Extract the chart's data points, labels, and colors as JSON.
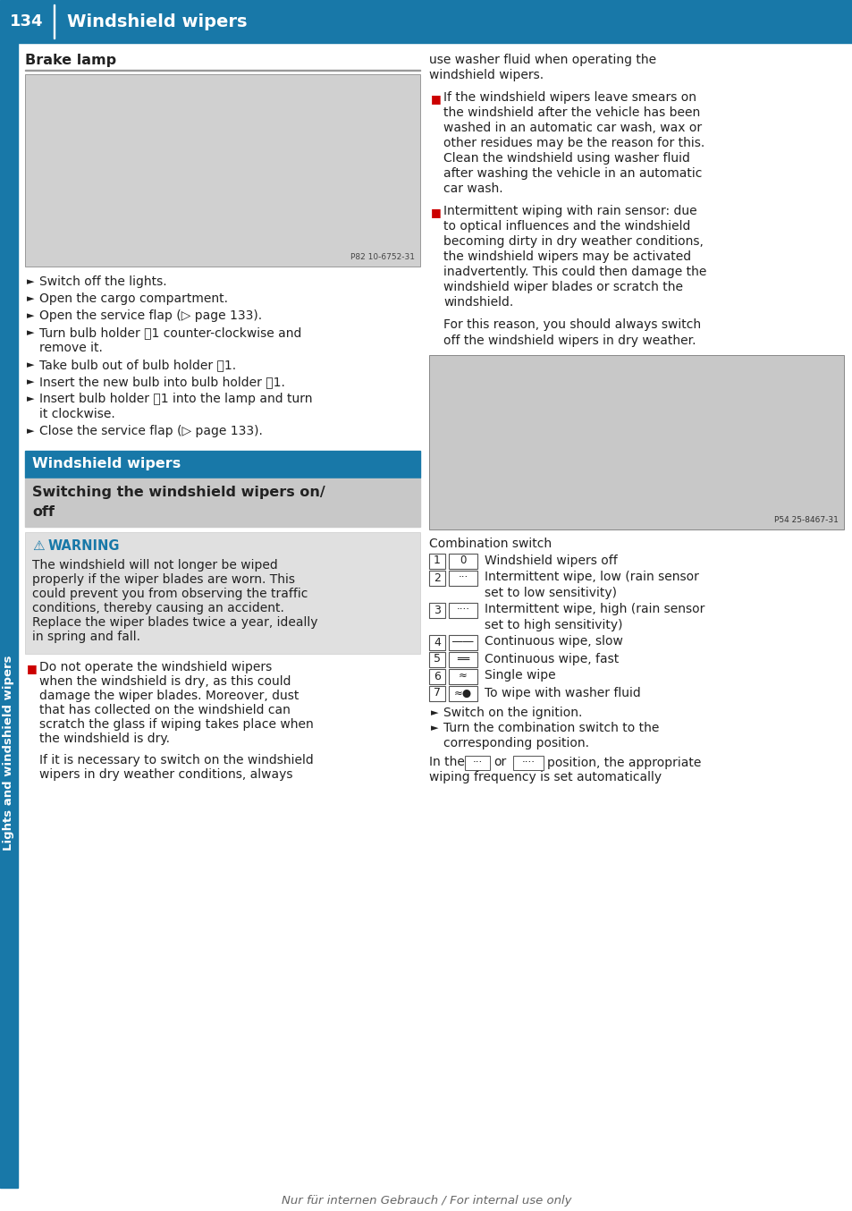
{
  "page_number": "134",
  "header_title": "Windshield wipers",
  "header_bg": "#1878a8",
  "sidebar_text": "Lights and windshield wipers",
  "brake_lamp_title": "Brake lamp",
  "brake_lamp_items": [
    [
      "Switch off the lights.",
      null
    ],
    [
      "Open the cargo compartment.",
      null
    ],
    [
      "Open the service flap (▷ page 133).",
      null
    ],
    [
      "Turn bulb holder ␱1 counter-clockwise and",
      "remove it."
    ],
    [
      "Take bulb out of bulb holder ␱1.",
      null
    ],
    [
      "Insert the new bulb into bulb holder ␱1.",
      null
    ],
    [
      "Insert bulb holder ␱1 into the lamp and turn",
      "it clockwise."
    ],
    [
      "Close the service flap (▷ page 133).",
      null
    ]
  ],
  "windshield_section_title": "Windshield wipers",
  "switching_line1": "Switching the windshield wipers on/",
  "switching_line2": "off",
  "warning_title": "WARNING",
  "warning_lines": [
    "The windshield will not longer be wiped",
    "properly if the wiper blades are worn. This",
    "could prevent you from observing the traffic",
    "conditions, thereby causing an accident.",
    "Replace the wiper blades twice a year, ideally",
    "in spring and fall."
  ],
  "notice1_lines": [
    "Do not operate the windshield wipers",
    "when the windshield is dry, as this could",
    "damage the wiper blades. Moreover, dust",
    "that has collected on the windshield can",
    "scratch the glass if wiping takes place when",
    "the windshield is dry.",
    "",
    "If it is necessary to switch on the windshield",
    "wipers in dry weather conditions, always"
  ],
  "right_intro_lines": [
    "use washer fluid when operating the",
    "windshield wipers."
  ],
  "notice2_lines": [
    "If the windshield wipers leave smears on",
    "the windshield after the vehicle has been",
    "washed in an automatic car wash, wax or",
    "other residues may be the reason for this.",
    "Clean the windshield using washer fluid",
    "after washing the vehicle in an automatic",
    "car wash."
  ],
  "notice3_lines": [
    "Intermittent wiping with rain sensor: due",
    "to optical influences and the windshield",
    "becoming dirty in dry weather conditions,",
    "the windshield wipers may be activated",
    "inadvertently. This could then damage the",
    "windshield wiper blades or scratch the",
    "windshield.",
    "",
    "For this reason, you should always switch",
    "off the windshield wipers in dry weather."
  ],
  "combo_label": "Combination switch",
  "combo_items": [
    {
      "num": "1",
      "icon": "0",
      "desc": [
        "Windshield wipers off"
      ]
    },
    {
      "num": "2",
      "icon": "···",
      "desc": [
        "Intermittent wipe, low (rain sensor",
        "set to low sensitivity)"
      ]
    },
    {
      "num": "3",
      "icon": "····",
      "desc": [
        "Intermittent wipe, high (rain sensor",
        "set to high sensitivity)"
      ]
    },
    {
      "num": "4",
      "icon": "――",
      "desc": [
        "Continuous wipe, slow"
      ]
    },
    {
      "num": "5",
      "icon": "══",
      "desc": [
        "Continuous wipe, fast"
      ]
    },
    {
      "num": "6",
      "icon": "≈",
      "desc": [
        "Single wipe"
      ]
    },
    {
      "num": "7",
      "icon": "≈●",
      "desc": [
        "To wipe with washer fluid"
      ]
    }
  ],
  "final_bullets": [
    [
      "Switch on the ignition.",
      null
    ],
    [
      "Turn the combination switch to the",
      "corresponding position."
    ]
  ],
  "final_line1": "In the",
  "final_icon1": "···",
  "final_or": "or",
  "final_icon2": "····",
  "final_line2": "position, the appropriate",
  "final_line3": "wiping frequency is set automatically",
  "footer_text": "Nur für internen Gebrauch / For internal use only",
  "blue": "#1878a8",
  "dark": "#222222",
  "warn_orange": "#1878a8",
  "red_icon": "#cc0000",
  "warn_bg": "#e0e0e0",
  "switch_bg": "#c8c8c8",
  "img1_caption": "P82 10-6752-31",
  "img2_caption": "P54 25-8467-31"
}
